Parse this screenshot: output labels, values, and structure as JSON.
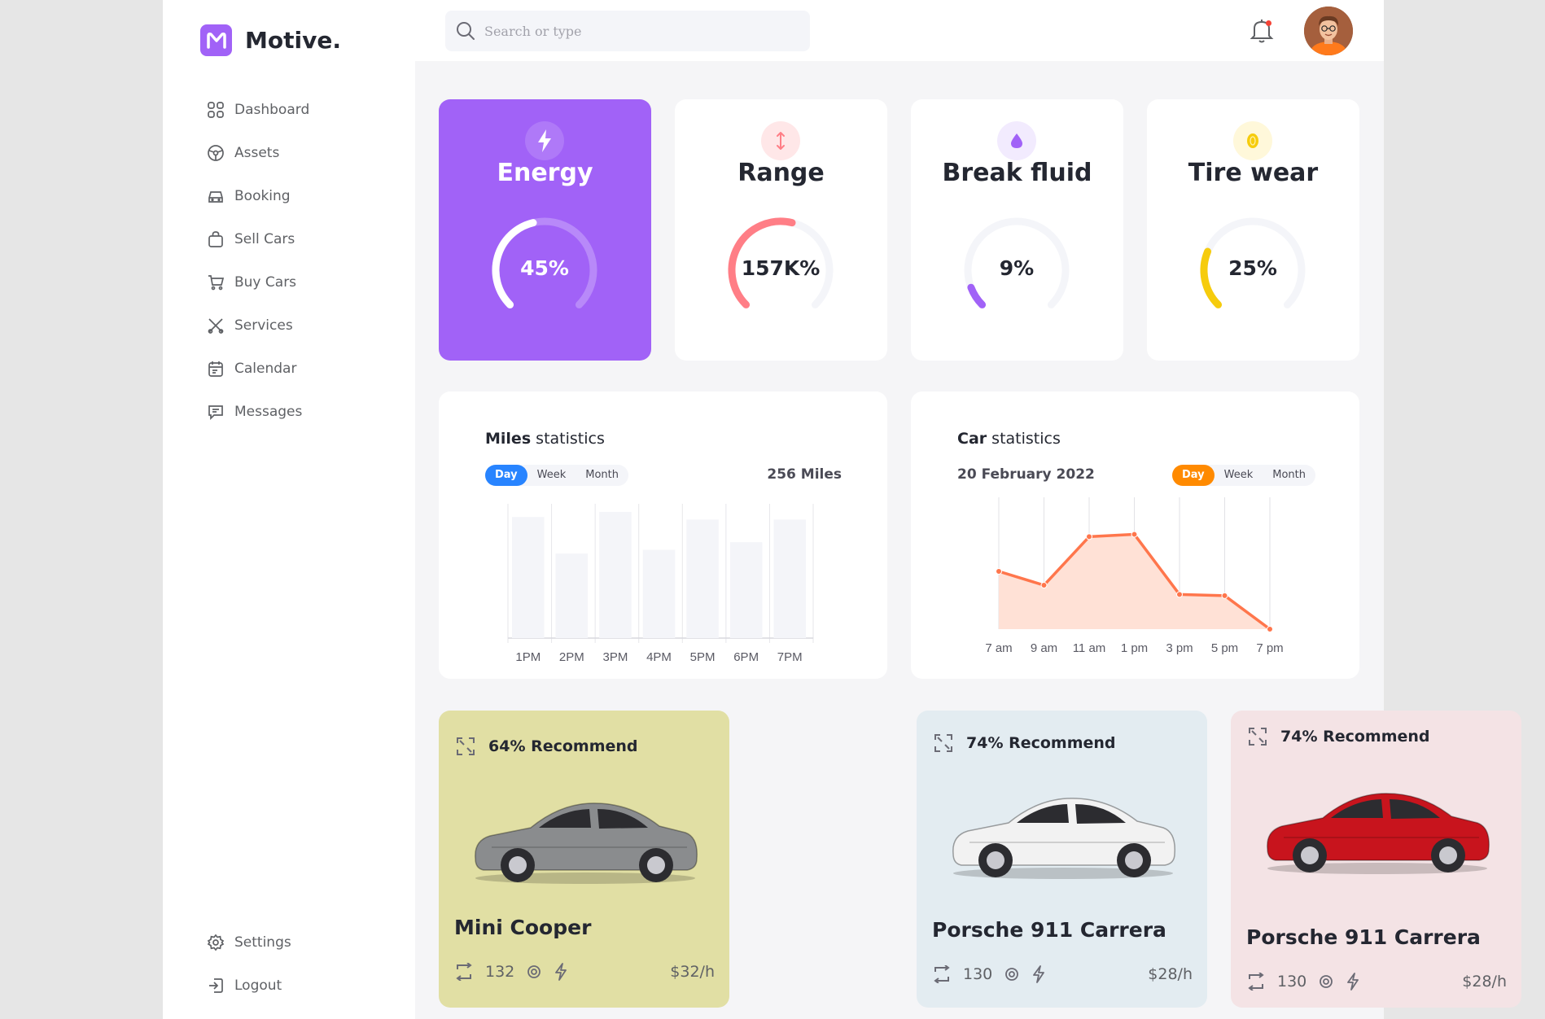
{
  "app": {
    "brand": "Motive.",
    "brand_color": "#a162f7"
  },
  "sidebar": {
    "items": [
      {
        "label": "Dashboard",
        "icon": "grid-icon"
      },
      {
        "label": "Assets",
        "icon": "steering-icon"
      },
      {
        "label": "Booking",
        "icon": "car-icon"
      },
      {
        "label": "Sell Cars",
        "icon": "bag-icon"
      },
      {
        "label": "Buy Cars",
        "icon": "cart-icon"
      },
      {
        "label": "Services",
        "icon": "tools-icon"
      },
      {
        "label": "Calendar",
        "icon": "calendar-icon"
      },
      {
        "label": "Messages",
        "icon": "chat-icon"
      }
    ],
    "bottom": [
      {
        "label": "Settings",
        "icon": "gear-icon"
      },
      {
        "label": "Logout",
        "icon": "logout-icon"
      }
    ]
  },
  "header": {
    "search_placeholder": "Search or type"
  },
  "stats": [
    {
      "title": "Energy",
      "value": "45%",
      "level": 0.45,
      "color": "#ffffff",
      "icon": "lightning-icon"
    },
    {
      "title": "Range",
      "value": "157K%",
      "level": 0.55,
      "color": "#ff7e86",
      "icon": "arrows-vertical-icon"
    },
    {
      "title": "Break fluid",
      "value": "9%",
      "level": 0.09,
      "color": "#a162f7",
      "icon": "drop-icon"
    },
    {
      "title": "Tire wear",
      "value": "25%",
      "level": 0.25,
      "color": "#f6cc0d",
      "icon": "coin-icon"
    }
  ],
  "miles": {
    "title_bold": "Miles",
    "title_rest": " statistics",
    "tabs": [
      "Day",
      "Week",
      "Month"
    ],
    "total": "256 Miles",
    "chart_data": {
      "type": "bar",
      "categories": [
        "1PM",
        "2PM",
        "3PM",
        "4PM",
        "5PM",
        "6PM",
        "7PM"
      ],
      "values": [
        0.96,
        0.67,
        1.0,
        0.7,
        0.94,
        0.76,
        0.94
      ]
    }
  },
  "cars_stats": {
    "title_bold": "Car",
    "title_rest": " statistics",
    "date": "20 February 2022",
    "tabs": [
      "Day",
      "Week",
      "Month"
    ],
    "chart_data": {
      "type": "area",
      "categories": [
        "7 am",
        "9 am",
        "11 am",
        "1 pm",
        "3 pm",
        "5 pm",
        "7 pm"
      ],
      "values": [
        0.5,
        0.38,
        0.8,
        0.82,
        0.3,
        0.29,
        0.0
      ],
      "color": "#ff764c"
    }
  },
  "cars": [
    {
      "recommend": "64% Recommend",
      "name": "Mini Cooper",
      "km": "132",
      "price": "$32/h",
      "bg": "#e1dfa4",
      "body": "#8a8c8e"
    },
    {
      "recommend": "74% Recommend",
      "name": "Porsche 911 Carrera",
      "km": "130",
      "price": "$28/h",
      "bg": "#e3ecf1",
      "body": "#f2f2f2"
    },
    {
      "recommend": "74% Recommend",
      "name": "Porsche 911 Carrera",
      "km": "130",
      "price": "$28/h",
      "bg": "#f4e3e5",
      "body": "#c8141d"
    }
  ]
}
